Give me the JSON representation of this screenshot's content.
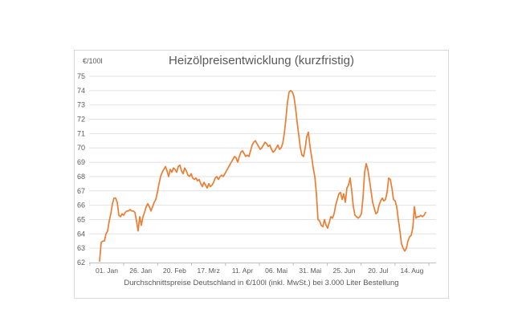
{
  "chart_data": {
    "type": "line",
    "title": "Heizölpreisentwicklung (kurzfristig)",
    "unit_label": "€/100l",
    "footer": "Durchschnittspreise Deutschland in €/100l (inkl. MwSt.) bei 3.000 Liter Bestellung",
    "x_tick_labels": [
      "01. Jan",
      "26. Jan",
      "20. Feb",
      "17. Mrz",
      "11. Apr",
      "06. Mai",
      "31. Mai",
      "25. Jun",
      "20. Jul",
      "14. Aug"
    ],
    "y_ticks": [
      62,
      63,
      64,
      65,
      66,
      67,
      68,
      69,
      70,
      71,
      72,
      73,
      74,
      75
    ],
    "ylim": [
      62,
      75
    ],
    "grid": "horizontal-only",
    "legend": "none",
    "line_color": "#ED7D31",
    "text_color": "#595959",
    "grid_color": "#e2e2e2",
    "axis_color": "#bfbfbf",
    "border_color": "#d9d9d9",
    "values": [
      62.1,
      63.4,
      63.5,
      63.5,
      64.0,
      64.2,
      64.9,
      65.4,
      66.1,
      66.5,
      66.5,
      66.2,
      65.3,
      65.2,
      65.4,
      65.3,
      65.5,
      65.6,
      65.6,
      65.7,
      65.6,
      65.6,
      65.5,
      64.9,
      64.2,
      65.2,
      64.6,
      65.2,
      65.5,
      65.9,
      66.1,
      65.9,
      65.6,
      65.9,
      66.2,
      66.4,
      66.9,
      67.5,
      68.0,
      68.3,
      68.5,
      68.7,
      68.4,
      68.0,
      68.5,
      68.3,
      68.6,
      68.5,
      68.3,
      68.7,
      68.8,
      68.4,
      68.2,
      68.6,
      68.4,
      68.1,
      68.0,
      68.2,
      67.9,
      67.8,
      67.9,
      67.7,
      67.8,
      67.5,
      67.3,
      67.6,
      67.4,
      67.2,
      67.5,
      67.3,
      67.4,
      67.6,
      67.9,
      68.0,
      67.8,
      68.0,
      68.1,
      68.0,
      68.2,
      68.4,
      68.6,
      68.8,
      69.0,
      69.2,
      69.4,
      69.3,
      69.0,
      69.4,
      69.7,
      69.8,
      69.6,
      69.4,
      69.5,
      69.4,
      69.8,
      70.2,
      70.4,
      70.5,
      70.3,
      70.1,
      69.9,
      70.0,
      70.2,
      70.4,
      70.3,
      70.1,
      70.2,
      69.9,
      69.7,
      69.8,
      70.0,
      70.2,
      69.9,
      70.0,
      70.3,
      71.0,
      72.0,
      73.2,
      73.9,
      74.0,
      73.9,
      73.6,
      72.8,
      71.8,
      70.9,
      70.0,
      69.5,
      69.4,
      70.0,
      70.8,
      71.1,
      70.1,
      69.4,
      68.6,
      68.0,
      66.8,
      65.0,
      64.9,
      64.6,
      64.5,
      65.0,
      64.6,
      64.4,
      64.8,
      65.2,
      65.1,
      65.4,
      66.0,
      66.4,
      66.8,
      66.9,
      66.4,
      66.8,
      66.2,
      67.2,
      67.4,
      67.9,
      67.0,
      65.9,
      65.3,
      65.2,
      65.1,
      65.2,
      65.4,
      66.5,
      68.3,
      68.9,
      68.5,
      67.8,
      67.0,
      66.2,
      65.8,
      65.4,
      65.5,
      66.0,
      66.3,
      66.5,
      66.3,
      66.4,
      66.9,
      67.9,
      67.8,
      67.2,
      66.4,
      66.3,
      65.9,
      65.0,
      64.2,
      63.3,
      63.0,
      62.8,
      63.0,
      63.5,
      63.8,
      63.9,
      64.4,
      65.9,
      65.1,
      65.2,
      65.2,
      65.3,
      65.2,
      65.3,
      65.5
    ]
  }
}
